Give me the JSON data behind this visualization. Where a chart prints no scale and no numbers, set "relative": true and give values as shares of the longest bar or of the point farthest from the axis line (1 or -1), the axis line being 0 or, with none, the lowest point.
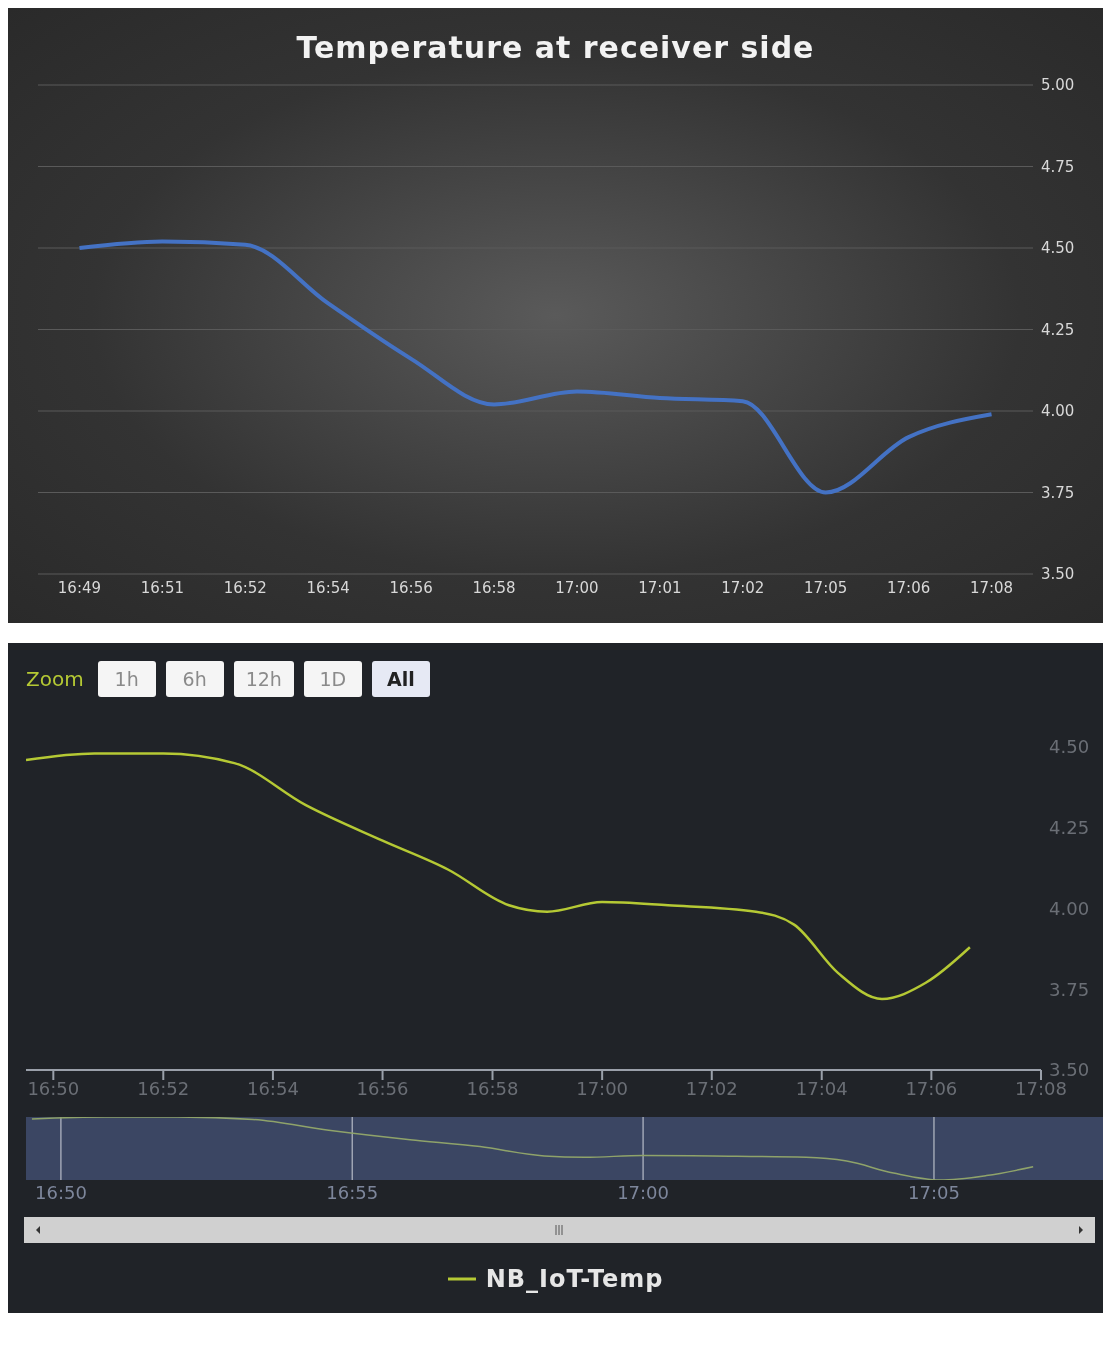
{
  "chart_data": [
    {
      "type": "line",
      "title": "Temperature at receiver side",
      "categories": [
        "16:49",
        "16:51",
        "16:52",
        "16:54",
        "16:56",
        "16:58",
        "17:00",
        "17:01",
        "17:02",
        "17:05",
        "17:06",
        "17:08"
      ],
      "series": [
        {
          "color": "#4472c4",
          "values": [
            4.5,
            4.52,
            4.51,
            4.33,
            4.16,
            4.02,
            4.06,
            4.04,
            4.03,
            3.75,
            3.92,
            3.99
          ]
        }
      ],
      "ylim": [
        3.5,
        5
      ],
      "yticks": [
        {
          "value": 3.5,
          "label": "3.50"
        },
        {
          "value": 3.75,
          "label": "3.75"
        },
        {
          "value": 4,
          "label": "4.00"
        },
        {
          "value": 4.25,
          "label": "4.25"
        },
        {
          "value": 4.5,
          "label": "4.50"
        },
        {
          "value": 4.75,
          "label": "4.75"
        },
        {
          "value": 5,
          "label": "5.00"
        }
      ],
      "grid": "y",
      "marker": "none",
      "line_style": "solid"
    },
    {
      "type": "line",
      "annotations": [
        "Zoom",
        "1h",
        "6h",
        "12h",
        "1D",
        "All"
      ],
      "series": [
        {
          "name": "NB_IoT-Temp",
          "color": "#b5c934",
          "x": [
            16.825,
            16.8458,
            16.8667,
            16.8883,
            16.91,
            16.9333,
            16.9533,
            16.9717,
            16.9833,
            17.0,
            17.02,
            17.0467,
            17.0583,
            17.0717,
            17.085,
            17.0983,
            17.1117
          ],
          "values": [
            4.46,
            4.48,
            4.48,
            4.45,
            4.32,
            4.21,
            4.12,
            4.01,
            3.99,
            4.02,
            4.01,
            3.99,
            3.95,
            3.8,
            3.72,
            3.77,
            3.88
          ]
        }
      ],
      "xlim": [
        16.825,
        17.1333
      ],
      "xticks": [
        {
          "value": 16.8333,
          "label": "16:50"
        },
        {
          "value": 16.8667,
          "label": "16:52"
        },
        {
          "value": 16.9,
          "label": "16:54"
        },
        {
          "value": 16.9333,
          "label": "16:56"
        },
        {
          "value": 16.9667,
          "label": "16:58"
        },
        {
          "value": 17.0,
          "label": "17:00"
        },
        {
          "value": 17.0333,
          "label": "17:02"
        },
        {
          "value": 17.0667,
          "label": "17:04"
        },
        {
          "value": 17.1,
          "label": "17:06"
        },
        {
          "value": 17.1333,
          "label": "17:08"
        }
      ],
      "ylim": [
        3.5,
        4.5
      ],
      "yticks": [
        {
          "value": 3.5,
          "label": "3.50"
        },
        {
          "value": 3.75,
          "label": "3.75"
        },
        {
          "value": 4,
          "label": "4.00"
        },
        {
          "value": 4.25,
          "label": "4.25"
        },
        {
          "value": 4.5,
          "label": "4.50"
        }
      ],
      "grid": false,
      "legend": "bottom",
      "marker": "none",
      "line_style": "solid"
    },
    {
      "type": "line",
      "relative": true,
      "tick_labels": "x",
      "series": [
        {
          "color": "#8fa36a",
          "x": [
            16.825,
            16.8458,
            16.8667,
            16.8883,
            16.91,
            16.9333,
            16.9533,
            16.9717,
            16.9833,
            17.0,
            17.02,
            17.0467,
            17.0583,
            17.0717,
            17.085,
            17.0983,
            17.1117
          ],
          "values": [
            0.97,
            1,
            1,
            0.96,
            0.79,
            0.64,
            0.53,
            0.38,
            0.36,
            0.39,
            0.38,
            0.36,
            0.3,
            0.11,
            0,
            0.07,
            0.21
          ]
        }
      ],
      "xlim": [
        16.8233,
        17.1317
      ],
      "xticks": [
        {
          "value": 16.8333,
          "label": "16:50"
        },
        {
          "value": 16.9167,
          "label": "16:55"
        },
        {
          "value": 17.0,
          "label": "17:00"
        },
        {
          "value": 17.0833,
          "label": "17:05"
        }
      ],
      "grid": "x",
      "marker": "none",
      "line_style": "solid"
    }
  ]
}
